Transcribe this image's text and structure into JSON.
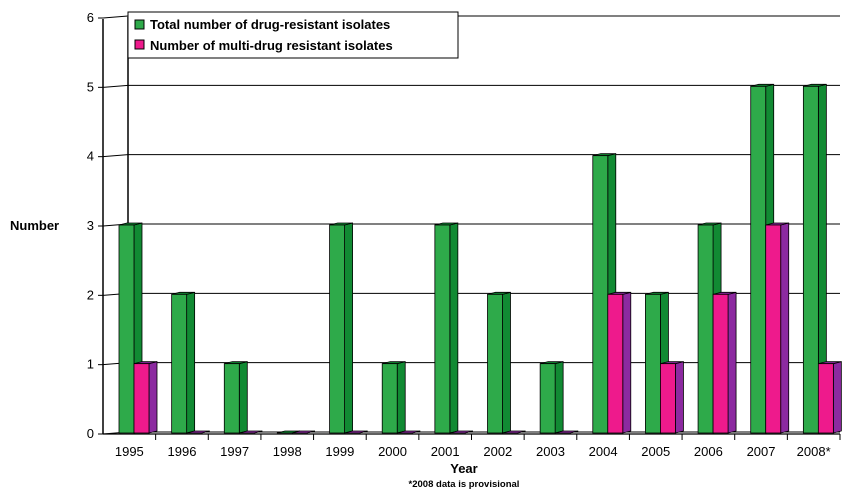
{
  "chart_data": {
    "type": "bar",
    "title": "",
    "xlabel": "Year",
    "ylabel": "Number",
    "footnote": "*2008 data is provisional",
    "categories": [
      "1995",
      "1996",
      "1997",
      "1998",
      "1999",
      "2000",
      "2001",
      "2002",
      "2003",
      "2004",
      "2005",
      "2006",
      "2007",
      "2008*"
    ],
    "series": [
      {
        "name": "Total number of drug-resistant isolates",
        "values": [
          3,
          2,
          1,
          0,
          3,
          1,
          3,
          2,
          1,
          4,
          2,
          3,
          5,
          5
        ]
      },
      {
        "name": "Number of multi-drug resistant isolates",
        "values": [
          1,
          0,
          0,
          0,
          0,
          0,
          0,
          0,
          0,
          2,
          1,
          2,
          3,
          1
        ]
      }
    ],
    "ylim": [
      0,
      6
    ],
    "yticks": [
      0,
      1,
      2,
      3,
      4,
      5,
      6
    ],
    "grid": true,
    "legend_position": "top-left",
    "colors": {
      "series1": "#2eaa4a",
      "series1_side": "#118a33",
      "series2": "#ee1a8c",
      "series2_side": "#8c2aa0"
    }
  }
}
